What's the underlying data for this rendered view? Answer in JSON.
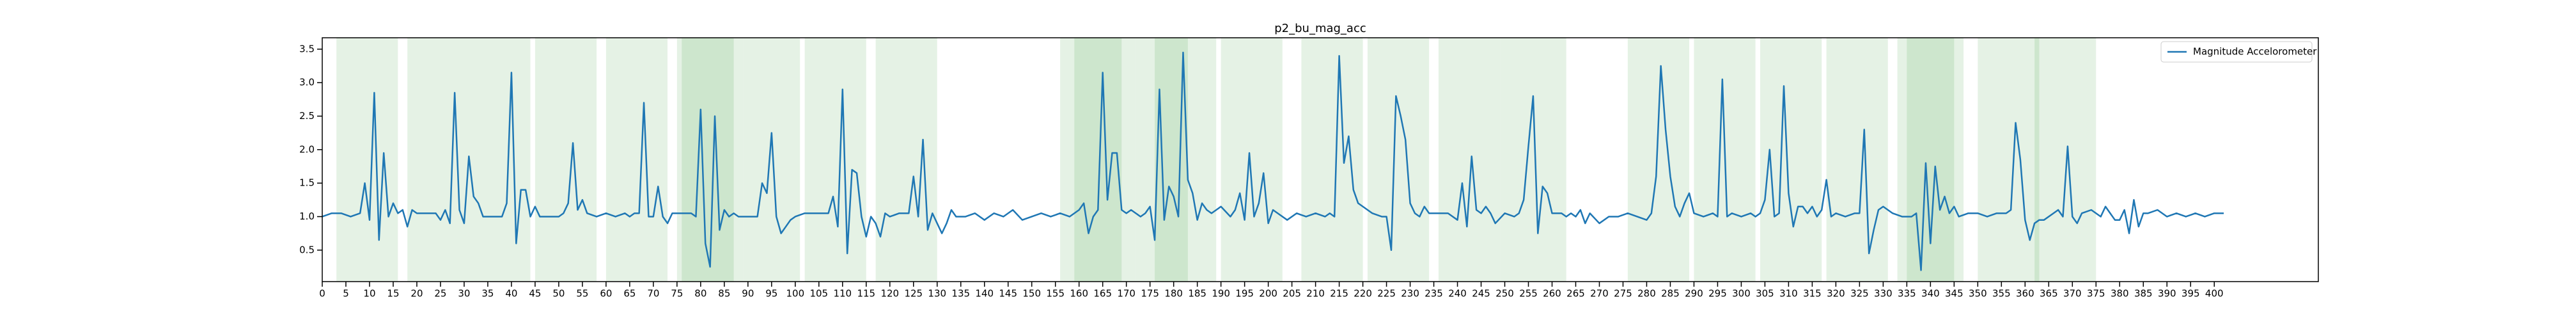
{
  "chart_data": {
    "type": "line",
    "title": "p2_bu_mag_acc",
    "series": [
      {
        "name": "Magnitude Accelorometer",
        "color": "#1f77b4",
        "x": [
          0,
          2,
          4,
          6,
          8,
          9,
          10,
          11,
          12,
          13,
          14,
          15,
          16,
          17,
          18,
          19,
          20,
          22,
          24,
          25,
          26,
          27,
          28,
          29,
          30,
          31,
          32,
          33,
          34,
          36,
          38,
          39,
          40,
          41,
          42,
          43,
          44,
          45,
          46,
          48,
          50,
          51,
          52,
          53,
          54,
          55,
          56,
          58,
          60,
          62,
          64,
          65,
          66,
          67,
          68,
          69,
          70,
          71,
          72,
          73,
          74,
          76,
          78,
          79,
          80,
          81,
          82,
          83,
          84,
          85,
          86,
          87,
          88,
          90,
          92,
          93,
          94,
          95,
          96,
          97,
          98,
          99,
          100,
          102,
          104,
          106,
          107,
          108,
          109,
          110,
          111,
          112,
          113,
          114,
          115,
          116,
          117,
          118,
          119,
          120,
          122,
          124,
          125,
          126,
          127,
          128,
          129,
          130,
          131,
          132,
          133,
          134,
          136,
          138,
          140,
          142,
          144,
          146,
          148,
          150,
          152,
          154,
          156,
          158,
          160,
          161,
          162,
          163,
          164,
          165,
          166,
          167,
          168,
          169,
          170,
          171,
          172,
          173,
          174,
          175,
          176,
          177,
          178,
          179,
          180,
          181,
          182,
          183,
          184,
          185,
          186,
          187,
          188,
          190,
          192,
          193,
          194,
          195,
          196,
          197,
          198,
          199,
          200,
          201,
          202,
          204,
          206,
          208,
          210,
          212,
          213,
          214,
          215,
          216,
          217,
          218,
          219,
          220,
          222,
          224,
          225,
          226,
          227,
          228,
          229,
          230,
          231,
          232,
          233,
          234,
          236,
          238,
          240,
          241,
          242,
          243,
          244,
          245,
          246,
          247,
          248,
          250,
          252,
          253,
          254,
          255,
          256,
          257,
          258,
          259,
          260,
          262,
          263,
          264,
          265,
          266,
          267,
          268,
          270,
          272,
          274,
          276,
          278,
          280,
          281,
          282,
          283,
          284,
          285,
          286,
          287,
          288,
          289,
          290,
          292,
          294,
          295,
          296,
          297,
          298,
          300,
          302,
          303,
          304,
          305,
          306,
          307,
          308,
          309,
          310,
          311,
          312,
          313,
          314,
          315,
          316,
          317,
          318,
          319,
          320,
          322,
          324,
          325,
          326,
          327,
          328,
          329,
          330,
          332,
          334,
          336,
          337,
          338,
          339,
          340,
          341,
          342,
          343,
          344,
          345,
          346,
          348,
          350,
          352,
          354,
          356,
          357,
          358,
          359,
          360,
          361,
          362,
          363,
          364,
          366,
          367,
          368,
          369,
          370,
          371,
          372,
          374,
          375,
          376,
          377,
          378,
          379,
          380,
          381,
          382,
          383,
          384,
          385,
          386,
          388,
          390,
          392,
          394,
          396,
          398,
          400,
          402
        ],
        "values": [
          1.0,
          1.05,
          1.05,
          1.0,
          1.05,
          1.5,
          0.95,
          2.85,
          0.65,
          1.95,
          1.0,
          1.2,
          1.05,
          1.1,
          0.85,
          1.1,
          1.05,
          1.05,
          1.05,
          0.95,
          1.1,
          0.9,
          2.85,
          1.1,
          0.9,
          1.9,
          1.3,
          1.2,
          1.0,
          1.0,
          1.0,
          1.2,
          3.15,
          0.6,
          1.4,
          1.4,
          1.0,
          1.15,
          1.0,
          1.0,
          1.0,
          1.05,
          1.2,
          2.1,
          1.1,
          1.25,
          1.05,
          1.0,
          1.05,
          1.0,
          1.05,
          1.0,
          1.05,
          1.05,
          2.7,
          1.0,
          1.0,
          1.45,
          1.0,
          0.9,
          1.05,
          1.05,
          1.05,
          1.0,
          2.6,
          0.6,
          0.25,
          2.5,
          0.8,
          1.1,
          1.0,
          1.05,
          1.0,
          1.0,
          1.0,
          1.5,
          1.35,
          2.25,
          1.0,
          0.75,
          0.85,
          0.95,
          1.0,
          1.05,
          1.05,
          1.05,
          1.05,
          1.3,
          0.85,
          2.9,
          0.45,
          1.7,
          1.65,
          1.0,
          0.7,
          1.0,
          0.9,
          0.7,
          1.05,
          1.0,
          1.05,
          1.05,
          1.6,
          1.0,
          2.15,
          0.8,
          1.05,
          0.9,
          0.75,
          0.9,
          1.1,
          1.0,
          1.0,
          1.05,
          0.95,
          1.05,
          1.0,
          1.1,
          0.95,
          1.0,
          1.05,
          1.0,
          1.05,
          1.0,
          1.1,
          1.2,
          0.75,
          1.0,
          1.1,
          3.15,
          1.25,
          1.95,
          1.95,
          1.1,
          1.05,
          1.1,
          1.05,
          1.0,
          1.05,
          1.15,
          0.65,
          2.9,
          0.95,
          1.45,
          1.3,
          1.0,
          3.45,
          1.55,
          1.35,
          0.95,
          1.2,
          1.1,
          1.05,
          1.15,
          1.0,
          1.1,
          1.35,
          0.95,
          1.95,
          1.0,
          1.2,
          1.65,
          0.9,
          1.1,
          1.05,
          0.95,
          1.05,
          1.0,
          1.05,
          1.0,
          1.05,
          1.0,
          3.4,
          1.8,
          2.2,
          1.4,
          1.2,
          1.15,
          1.05,
          1.0,
          1.0,
          0.5,
          2.8,
          2.5,
          2.15,
          1.2,
          1.05,
          1.0,
          1.15,
          1.05,
          1.05,
          1.05,
          0.95,
          1.5,
          0.85,
          1.9,
          1.1,
          1.05,
          1.15,
          1.05,
          0.9,
          1.05,
          1.0,
          1.05,
          1.25,
          2.05,
          2.8,
          0.75,
          1.45,
          1.35,
          1.05,
          1.05,
          1.0,
          1.05,
          1.0,
          1.1,
          0.9,
          1.05,
          0.9,
          1.0,
          1.0,
          1.05,
          1.0,
          0.95,
          1.05,
          1.6,
          3.25,
          2.3,
          1.6,
          1.15,
          1.0,
          1.2,
          1.35,
          1.05,
          1.0,
          1.05,
          1.0,
          3.05,
          1.0,
          1.05,
          1.0,
          1.05,
          1.0,
          1.05,
          1.25,
          2.0,
          1.0,
          1.05,
          2.95,
          1.35,
          0.85,
          1.15,
          1.15,
          1.05,
          1.15,
          1.0,
          1.1,
          1.55,
          1.0,
          1.05,
          1.0,
          1.05,
          1.05,
          2.3,
          0.45,
          0.8,
          1.1,
          1.15,
          1.05,
          1.0,
          1.0,
          1.05,
          0.2,
          1.8,
          0.6,
          1.75,
          1.1,
          1.3,
          1.05,
          1.15,
          1.0,
          1.05,
          1.05,
          1.0,
          1.05,
          1.05,
          1.1,
          2.4,
          1.85,
          0.95,
          0.65,
          0.9,
          0.95,
          0.95,
          1.05,
          1.1,
          1.0,
          2.05,
          1.0,
          0.9,
          1.05,
          1.1,
          1.05,
          1.0,
          1.15,
          1.05,
          0.95,
          0.95,
          1.1,
          0.75,
          1.25,
          0.85,
          1.05,
          1.05,
          1.1,
          1.0,
          1.05,
          1.0,
          1.05,
          1.0,
          1.05,
          1.05
        ]
      }
    ],
    "spans": [
      [
        3,
        16
      ],
      [
        18,
        31
      ],
      [
        31,
        44
      ],
      [
        45,
        58
      ],
      [
        60,
        73
      ],
      [
        75,
        87
      ],
      [
        76,
        89
      ],
      [
        89,
        101
      ],
      [
        102,
        115
      ],
      [
        117,
        130
      ],
      [
        156,
        169
      ],
      [
        159,
        172
      ],
      [
        172,
        183
      ],
      [
        176,
        189
      ],
      [
        190,
        203
      ],
      [
        207,
        220
      ],
      [
        221,
        234
      ],
      [
        236,
        249
      ],
      [
        249,
        263
      ],
      [
        276,
        289
      ],
      [
        290,
        303
      ],
      [
        304,
        317
      ],
      [
        318,
        331
      ],
      [
        333,
        345
      ],
      [
        335,
        347
      ],
      [
        350,
        363
      ],
      [
        362,
        375
      ]
    ],
    "span_color": "#008000",
    "span_alpha": 0.1,
    "xlim": [
      0,
      422
    ],
    "ylim": [
      0.03,
      3.67
    ],
    "xticks": [
      0,
      5,
      10,
      15,
      20,
      25,
      30,
      35,
      40,
      45,
      50,
      55,
      60,
      65,
      70,
      75,
      80,
      85,
      90,
      95,
      100,
      105,
      110,
      115,
      120,
      125,
      130,
      135,
      140,
      145,
      150,
      155,
      160,
      165,
      170,
      175,
      180,
      185,
      190,
      195,
      200,
      205,
      210,
      215,
      220,
      225,
      230,
      235,
      240,
      245,
      250,
      255,
      260,
      265,
      270,
      275,
      280,
      285,
      290,
      295,
      300,
      305,
      310,
      315,
      320,
      325,
      330,
      335,
      340,
      345,
      350,
      355,
      360,
      365,
      370,
      375,
      380,
      385,
      390,
      395,
      400
    ],
    "yticks": [
      0.5,
      {
        "value": 1,
        "label": "1.0"
      },
      1.5,
      {
        "value": 2,
        "label": "2.0"
      },
      2.5,
      {
        "value": 3,
        "label": "3.0"
      },
      3.5
    ],
    "legend": "upper right"
  }
}
